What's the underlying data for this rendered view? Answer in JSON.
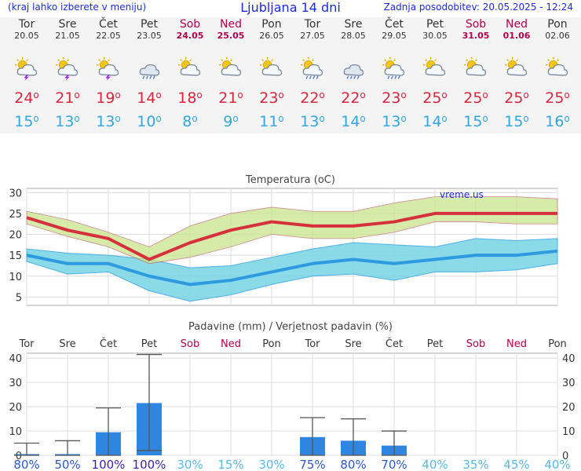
{
  "header": {
    "hint": "(kraj lahko izberete v meniju)",
    "title": "Ljubljana 14 dni",
    "updated": "Zadnja posodobitev: 20.05.2025 - 12:24"
  },
  "days": [
    {
      "name": "Tor",
      "date": "20.05",
      "weekend": false,
      "icon": "sun-cloud-thunder-icon",
      "tmax": "24",
      "tmin": "15"
    },
    {
      "name": "Sre",
      "date": "21.05",
      "weekend": false,
      "icon": "sun-cloud-thunder-icon",
      "tmax": "21",
      "tmin": "13"
    },
    {
      "name": "Čet",
      "date": "22.05",
      "weekend": false,
      "icon": "sun-cloud-thunder-icon",
      "tmax": "19",
      "tmin": "13"
    },
    {
      "name": "Pet",
      "date": "23.05",
      "weekend": false,
      "icon": "cloud-rain-icon",
      "tmax": "14",
      "tmin": "10"
    },
    {
      "name": "Sob",
      "date": "24.05",
      "weekend": true,
      "icon": "sun-cloud-icon",
      "tmax": "18",
      "tmin": "8"
    },
    {
      "name": "Ned",
      "date": "25.05",
      "weekend": true,
      "icon": "sun-partly-cloudy-icon",
      "tmax": "21",
      "tmin": "9"
    },
    {
      "name": "Pon",
      "date": "26.05",
      "weekend": false,
      "icon": "sun-partly-cloudy-icon",
      "tmax": "23",
      "tmin": "11"
    },
    {
      "name": "Tor",
      "date": "27.05",
      "weekend": false,
      "icon": "sun-cloud-rain-icon",
      "tmax": "22",
      "tmin": "13"
    },
    {
      "name": "Sre",
      "date": "28.05",
      "weekend": false,
      "icon": "cloud-rain-icon",
      "tmax": "22",
      "tmin": "14"
    },
    {
      "name": "Čet",
      "date": "29.05",
      "weekend": false,
      "icon": "sun-cloud-rain-icon",
      "tmax": "23",
      "tmin": "13"
    },
    {
      "name": "Pet",
      "date": "30.05",
      "weekend": false,
      "icon": "sun-partly-cloudy-icon",
      "tmax": "25",
      "tmin": "14"
    },
    {
      "name": "Sob",
      "date": "31.05",
      "weekend": true,
      "icon": "sun-partly-cloudy-icon",
      "tmax": "25",
      "tmin": "15"
    },
    {
      "name": "Ned",
      "date": "01.06",
      "weekend": true,
      "icon": "sun-partly-cloudy-icon",
      "tmax": "25",
      "tmin": "15"
    },
    {
      "name": "Pon",
      "date": "02.06",
      "weekend": false,
      "icon": "sun-partly-cloudy-icon",
      "tmax": "25",
      "tmin": "16"
    }
  ],
  "degree_symbol": "o",
  "colors": {
    "title": "#1b2bd6",
    "weekend": "#b3004d",
    "tmax": "#d7263d",
    "tmin": "#33a6e0",
    "maxband": "#c9e58a",
    "minband": "#7fd6e6",
    "bar": "#2f86e0",
    "prob_high": "#3a1fb0",
    "prob_mid": "#2d58c8",
    "prob_low": "#5ab8ee"
  },
  "chart_data": [
    {
      "type": "line",
      "title": "Temperatura (oC)",
      "watermark": "vreme.us",
      "ylim": [
        3,
        31
      ],
      "yticks": [
        5,
        10,
        15,
        20,
        25,
        30
      ],
      "categories": [
        "Tor",
        "Sre",
        "Čet",
        "Pet",
        "Sob",
        "Ned",
        "Pon",
        "Tor",
        "Sre",
        "Čet",
        "Pet",
        "Sob",
        "Ned",
        "Pon"
      ],
      "series": [
        {
          "name": "max",
          "values": [
            24,
            21,
            19,
            14,
            18,
            21,
            23,
            22,
            22,
            23,
            25,
            25,
            25,
            25
          ],
          "lower": [
            22.5,
            19.5,
            17,
            13,
            14.5,
            17,
            20,
            19,
            19,
            20.5,
            23,
            23,
            22.5,
            22.5
          ],
          "upper": [
            25.5,
            23.5,
            20.5,
            17,
            22,
            25,
            26.5,
            25.5,
            25.5,
            27.5,
            29,
            29,
            29,
            28.5
          ]
        },
        {
          "name": "min",
          "values": [
            15,
            13,
            13,
            10,
            8,
            9,
            11,
            13,
            14,
            13,
            14,
            15,
            15,
            16
          ],
          "lower": [
            13.5,
            10.5,
            11,
            6.5,
            4,
            5.5,
            8,
            10,
            10.5,
            9,
            11,
            11,
            11.5,
            13
          ],
          "upper": [
            16.5,
            15.5,
            15,
            14,
            12,
            12.5,
            14.5,
            16.5,
            18,
            17.5,
            17,
            19,
            18.5,
            19
          ]
        }
      ]
    },
    {
      "type": "bar",
      "title": "Padavine (mm) / Verjetnost padavin (%)",
      "ylim": [
        0,
        42
      ],
      "yticks": [
        0,
        10,
        20,
        30,
        40
      ],
      "categories": [
        "Tor",
        "Sre",
        "Čet",
        "Pet",
        "Sob",
        "Ned",
        "Pon",
        "Tor",
        "Sre",
        "Čet",
        "Pet",
        "Sob",
        "Ned",
        "Pon"
      ],
      "values": [
        0.5,
        0.5,
        9.5,
        21.5,
        0,
        0,
        0,
        7.5,
        6,
        4,
        0,
        0,
        0,
        0
      ],
      "error_low": [
        0,
        0,
        0,
        2,
        null,
        null,
        null,
        0,
        0,
        0,
        null,
        null,
        null,
        null
      ],
      "error_high": [
        5,
        6,
        19.5,
        41.5,
        null,
        null,
        null,
        15.5,
        15,
        10,
        null,
        null,
        null,
        null
      ],
      "probability": [
        "80%",
        "50%",
        "100%",
        "100%",
        "30%",
        "15%",
        "30%",
        "75%",
        "80%",
        "70%",
        "40%",
        "35%",
        "45%",
        "40%"
      ]
    }
  ]
}
